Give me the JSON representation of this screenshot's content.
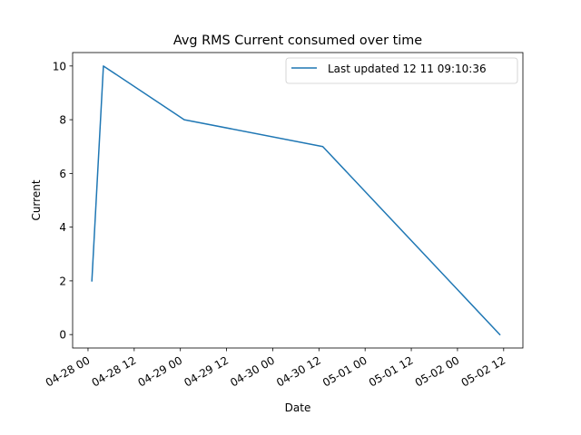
{
  "chart_data": {
    "type": "line",
    "title": "Avg RMS Current consumed over time",
    "xlabel": "Date",
    "ylabel": "Current",
    "x_axis_type": "date",
    "xlim": [
      "2018-04-27T20:00:00",
      "2018-05-02T17:00:00"
    ],
    "ylim": [
      -0.5,
      10.5
    ],
    "x_ticks": [
      {
        "value": "2018-04-28T00:00:00",
        "label": "04-28 00"
      },
      {
        "value": "2018-04-28T12:00:00",
        "label": "04-28 12"
      },
      {
        "value": "2018-04-29T00:00:00",
        "label": "04-29 00"
      },
      {
        "value": "2018-04-29T12:00:00",
        "label": "04-29 12"
      },
      {
        "value": "2018-04-30T00:00:00",
        "label": "04-30 00"
      },
      {
        "value": "2018-04-30T12:00:00",
        "label": "04-30 12"
      },
      {
        "value": "2018-05-01T00:00:00",
        "label": "05-01 00"
      },
      {
        "value": "2018-05-01T12:00:00",
        "label": "05-01 12"
      },
      {
        "value": "2018-05-02T00:00:00",
        "label": "05-02 00"
      },
      {
        "value": "2018-05-02T12:00:00",
        "label": "05-02 12"
      }
    ],
    "y_ticks": [
      0,
      2,
      4,
      6,
      8,
      10
    ],
    "grid": false,
    "legend_position": "top-right",
    "series": [
      {
        "name": "Last updated 12 11 09:10:36",
        "color": "#1f77b4",
        "points": [
          {
            "x": "2018-04-28T01:00:00",
            "y": 2
          },
          {
            "x": "2018-04-28T04:00:00",
            "y": 10
          },
          {
            "x": "2018-04-29T01:00:00",
            "y": 8
          },
          {
            "x": "2018-04-30T13:00:00",
            "y": 7
          },
          {
            "x": "2018-05-02T11:00:00",
            "y": 0
          }
        ]
      }
    ]
  }
}
